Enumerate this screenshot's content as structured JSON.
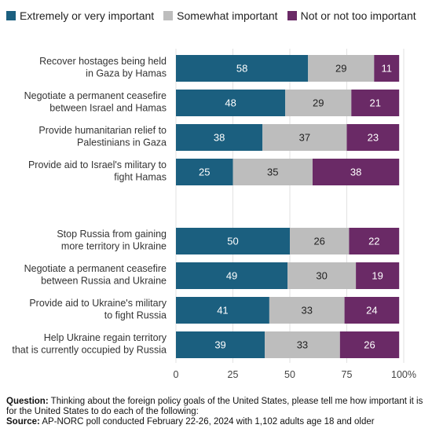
{
  "legend": [
    {
      "label": "Extremely or very important",
      "color": "#1b5f7f"
    },
    {
      "label": "Somewhat important",
      "color": "#bdbdbd"
    },
    {
      "label": "Not or not too important",
      "color": "#6a2a66"
    }
  ],
  "chart_data": {
    "type": "bar",
    "orientation": "horizontal",
    "stacked": true,
    "categories": [
      [
        "Recover hostages being held",
        "in Gaza by Hamas"
      ],
      [
        "Negotiate a permanent ceasefire",
        "between Israel and Hamas"
      ],
      [
        "Provide humanitarian relief to",
        "Palestinians in Gaza"
      ],
      [
        "Provide aid to Israel's military to",
        "fight Hamas"
      ],
      [
        "Stop Russia from gaining",
        "more territory in Ukraine"
      ],
      [
        "Negotiate a permanent ceasefire",
        "between Russia and Ukraine"
      ],
      [
        "Provide aid to Ukraine's military",
        "to fight Russia"
      ],
      [
        "Help Ukraine regain territory",
        "that is currently occupied by Russia"
      ]
    ],
    "series": [
      {
        "name": "Extremely or very important",
        "values": [
          58,
          48,
          38,
          25,
          50,
          49,
          41,
          39
        ]
      },
      {
        "name": "Somewhat important",
        "values": [
          29,
          29,
          37,
          35,
          26,
          30,
          33,
          33
        ]
      },
      {
        "name": "Not or not too important",
        "values": [
          11,
          21,
          23,
          38,
          22,
          19,
          24,
          26
        ]
      }
    ],
    "xlim": [
      0,
      100
    ],
    "xticks": [
      "0",
      "25",
      "50",
      "75",
      "100%"
    ],
    "grid": true
  },
  "footer": {
    "question_label": "Question:",
    "question_text": "Thinking about the foreign policy goals of the United States, please tell me how important it is for the United States to do each of the following:",
    "source_label": "Source:",
    "source_text": "AP-NORC poll conducted February 22-26, 2024 with 1,102 adults age 18 and older"
  }
}
